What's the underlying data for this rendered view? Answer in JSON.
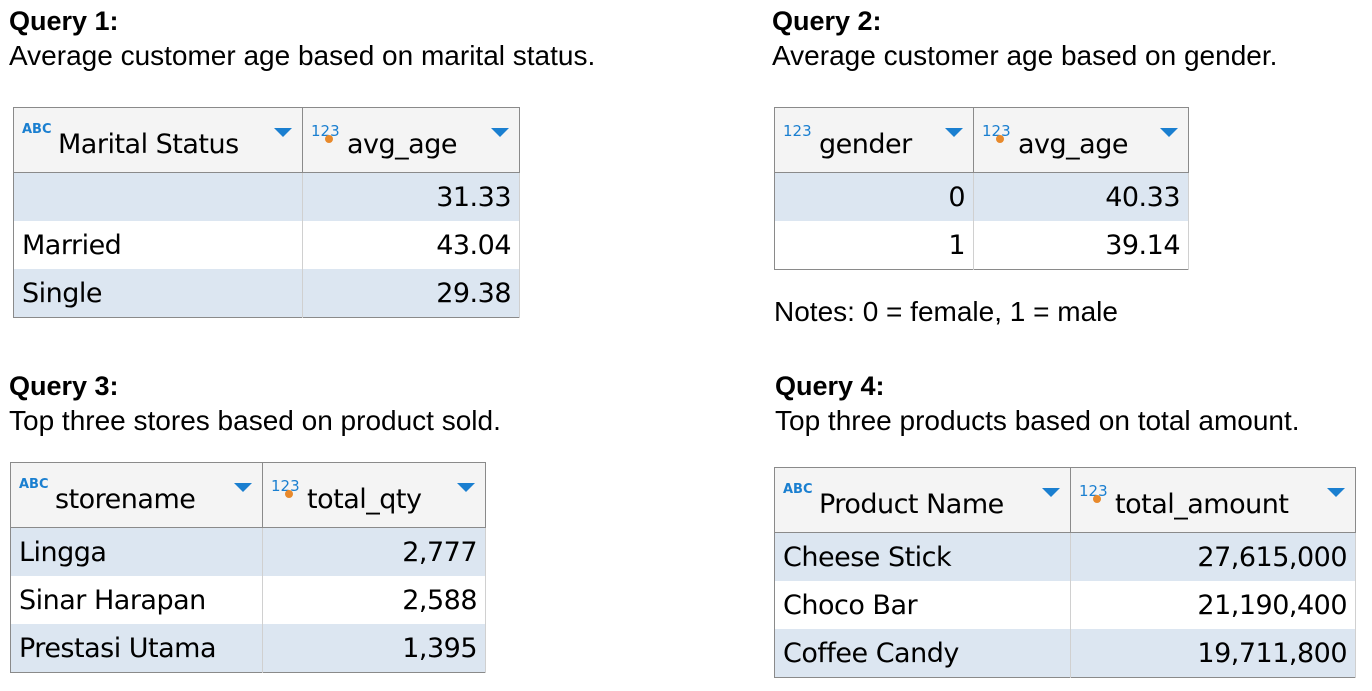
{
  "queries": [
    {
      "title": "Query 1:",
      "description": "Average customer age based on marital status.",
      "columns": [
        {
          "label": "Marital Status",
          "type_icon": "ABC"
        },
        {
          "label": "avg_age",
          "type_icon": "123"
        }
      ],
      "rows": [
        [
          "",
          "31.33"
        ],
        [
          "Married",
          "43.04"
        ],
        [
          "Single",
          "29.38"
        ]
      ]
    },
    {
      "title": "Query 2:",
      "description": "Average customer age based on gender.",
      "columns": [
        {
          "label": "gender",
          "type_icon": "123"
        },
        {
          "label": "avg_age",
          "type_icon": "123"
        }
      ],
      "rows": [
        [
          "0",
          "40.33"
        ],
        [
          "1",
          "39.14"
        ]
      ],
      "note": "Notes: 0 = female, 1 = male"
    },
    {
      "title": "Query 3:",
      "description": "Top three stores based on product sold.",
      "columns": [
        {
          "label": "storename",
          "type_icon": "ABC"
        },
        {
          "label": "total_qty",
          "type_icon": "123"
        }
      ],
      "rows": [
        [
          "Lingga",
          "2,777"
        ],
        [
          "Sinar Harapan",
          "2,588"
        ],
        [
          "Prestasi Utama",
          "1,395"
        ]
      ]
    },
    {
      "title": "Query 4:",
      "description": "Top three products based on total amount.",
      "columns": [
        {
          "label": "Product Name",
          "type_icon": "ABC"
        },
        {
          "label": "total_amount",
          "type_icon": "123"
        }
      ],
      "rows": [
        [
          "Cheese Stick",
          "27,615,000"
        ],
        [
          "Choco Bar",
          "21,190,400"
        ],
        [
          "Coffee Candy",
          "19,711,800"
        ]
      ]
    }
  ],
  "colors": {
    "row_alt": "#dce6f1",
    "header_bg": "#f4f4f4",
    "icon_blue": "#1a7fd0",
    "icon_orange": "#e8892b"
  }
}
